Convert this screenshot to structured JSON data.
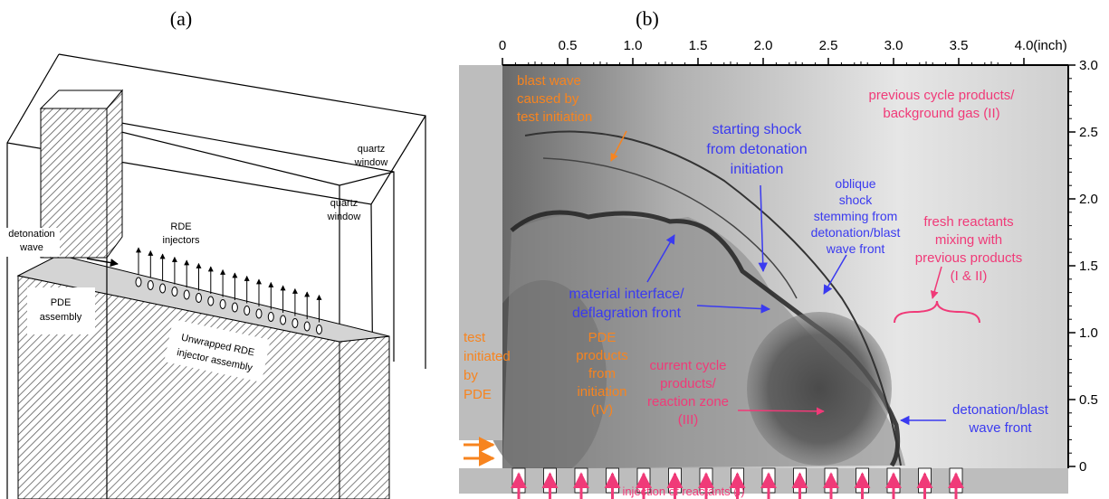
{
  "panel_a": {
    "label": "(a)",
    "texts": {
      "quartz_window_outer": [
        "quartz",
        "window"
      ],
      "quartz_window_inner": [
        "quartz",
        "window"
      ],
      "rde_injectors": [
        "RDE",
        "injectors"
      ],
      "detonation_wave": [
        "detonation",
        "wave"
      ],
      "pde_assembly": [
        "PDE",
        "assembly"
      ],
      "unwrapped": [
        "Unwrapped RDE",
        "injector assembly"
      ]
    }
  },
  "panel_b": {
    "label": "(b)",
    "x_axis": {
      "ticks": [
        "0",
        "0.5",
        "1.0",
        "1.5",
        "2.0",
        "2.5",
        "3.0",
        "3.5",
        "4.0"
      ],
      "unit": "(inch)"
    },
    "y_axis": {
      "ticks": [
        "0",
        "0.5",
        "1.0",
        "1.5",
        "2.0",
        "2.5",
        "3.0"
      ]
    },
    "texts": {
      "blast_wave": [
        "blast wave",
        "caused by",
        "test initiation"
      ],
      "previous_cycle": [
        "previous cycle products/",
        "background gas (II)"
      ],
      "starting_shock": [
        "starting shock",
        "from detonation",
        "initiation"
      ],
      "oblique_shock": [
        "oblique",
        "shock",
        "stemming from",
        "detonation/blast",
        "wave front"
      ],
      "fresh_reactants": [
        "fresh reactants",
        "mixing with",
        "previous products",
        "(I & II)"
      ],
      "material_interface": [
        "material interface/",
        "deflagration front"
      ],
      "test_initiated": [
        "test",
        "initiated",
        "by",
        "PDE"
      ],
      "pde_products": [
        "PDE",
        "products",
        "from",
        "initiation",
        "(IV)"
      ],
      "current_cycle": [
        "current cycle",
        "products/",
        "reaction zone",
        "(III)"
      ],
      "detonation_front": [
        "detonation/blast",
        "wave front"
      ],
      "injection": [
        "injection of reactants (I)"
      ]
    }
  }
}
